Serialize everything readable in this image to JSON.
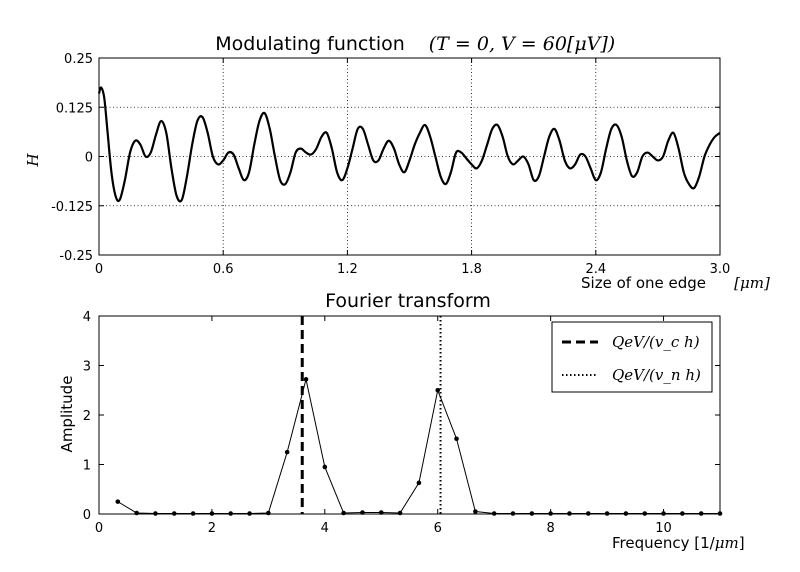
{
  "chart_data": [
    {
      "type": "line",
      "title": "Modulating function",
      "title_math": "(T = 0, V = 60[μV])",
      "xlabel": "Size of one edge",
      "xlabel_unit": "[μm]",
      "ylabel": "H",
      "xlim": [
        0,
        3.0
      ],
      "ylim": [
        -0.25,
        0.25
      ],
      "x_ticks": [
        "0",
        "0.6",
        "1.2",
        "1.8",
        "2.4",
        "3.0"
      ],
      "y_ticks": [
        "0.25",
        "0.125",
        "0",
        "-0.125",
        "-0.25"
      ],
      "grid": true,
      "series": [
        {
          "x": [
            0,
            0.01,
            0.025,
            0.04,
            0.06,
            0.08,
            0.1,
            0.125,
            0.15,
            0.175,
            0.2,
            0.225,
            0.25,
            0.275,
            0.3,
            0.325,
            0.35,
            0.375,
            0.4,
            0.425,
            0.45,
            0.475,
            0.5,
            0.525,
            0.55,
            0.575,
            0.6,
            0.625,
            0.65,
            0.675,
            0.7,
            0.725,
            0.75,
            0.775,
            0.8,
            0.825,
            0.85,
            0.875,
            0.9,
            0.925,
            0.95,
            0.975,
            1.0,
            1.025,
            1.05,
            1.075,
            1.1,
            1.125,
            1.15,
            1.175,
            1.2,
            1.225,
            1.25,
            1.275,
            1.3,
            1.325,
            1.35,
            1.375,
            1.4,
            1.425,
            1.45,
            1.475,
            1.5,
            1.525,
            1.55,
            1.575,
            1.6,
            1.625,
            1.65,
            1.675,
            1.7,
            1.725,
            1.75,
            1.775,
            1.8,
            1.825,
            1.85,
            1.875,
            1.9,
            1.925,
            1.95,
            1.975,
            2.0,
            2.025,
            2.05,
            2.075,
            2.1,
            2.125,
            2.15,
            2.175,
            2.2,
            2.225,
            2.25,
            2.275,
            2.3,
            2.325,
            2.35,
            2.375,
            2.4,
            2.425,
            2.45,
            2.475,
            2.5,
            2.525,
            2.55,
            2.575,
            2.6,
            2.625,
            2.65,
            2.675,
            2.7,
            2.725,
            2.75,
            2.775,
            2.8,
            2.825,
            2.85,
            2.875,
            2.9,
            2.925,
            2.95,
            2.975,
            3.0
          ],
          "y": [
            0.16,
            0.175,
            0.15,
            0.07,
            -0.04,
            -0.1,
            -0.11,
            -0.06,
            0.01,
            0.04,
            0.03,
            0.0,
            0.01,
            0.055,
            0.09,
            0.06,
            -0.03,
            -0.1,
            -0.11,
            -0.05,
            0.03,
            0.09,
            0.1,
            0.06,
            0.0,
            -0.02,
            -0.01,
            0.01,
            0.005,
            -0.03,
            -0.06,
            -0.04,
            0.03,
            0.09,
            0.11,
            0.07,
            0.0,
            -0.06,
            -0.07,
            -0.04,
            0.01,
            0.02,
            0.01,
            0.005,
            0.02,
            0.05,
            0.06,
            0.02,
            -0.04,
            -0.06,
            -0.03,
            0.02,
            0.07,
            0.07,
            0.03,
            -0.01,
            -0.01,
            0.02,
            0.04,
            0.02,
            -0.02,
            -0.04,
            -0.01,
            0.03,
            0.06,
            0.08,
            0.05,
            0.0,
            -0.05,
            -0.07,
            -0.04,
            0.01,
            0.01,
            -0.005,
            -0.02,
            -0.03,
            -0.01,
            0.03,
            0.07,
            0.08,
            0.05,
            0.0,
            -0.02,
            -0.01,
            0.0,
            -0.02,
            -0.06,
            -0.05,
            0.0,
            0.05,
            0.07,
            0.04,
            -0.01,
            -0.03,
            -0.02,
            0.005,
            0.0,
            -0.03,
            -0.06,
            -0.04,
            0.02,
            0.07,
            0.08,
            0.05,
            -0.01,
            -0.05,
            -0.04,
            0.0,
            0.01,
            0.0,
            -0.01,
            0.0,
            0.04,
            0.06,
            0.02,
            -0.04,
            -0.07,
            -0.08,
            -0.05,
            0.0,
            0.03,
            0.05,
            0.06
          ]
        }
      ]
    },
    {
      "type": "line",
      "title": "Fourier transform",
      "xlabel": "Frequency [1/",
      "xlabel_unit": "μm",
      "xlabel_end": "]",
      "ylabel": "Amplitude",
      "xlim": [
        0,
        11
      ],
      "ylim": [
        0,
        4
      ],
      "x_ticks": [
        "0",
        "2",
        "4",
        "6",
        "8",
        "10"
      ],
      "y_ticks": [
        "0",
        "1",
        "2",
        "3",
        "4"
      ],
      "grid": false,
      "legend_position": "top-right",
      "series": [
        {
          "x": [
            0.333,
            0.667,
            1.0,
            1.333,
            1.667,
            2.0,
            2.333,
            2.667,
            3.0,
            3.333,
            3.667,
            4.0,
            4.333,
            4.667,
            5.0,
            5.333,
            5.667,
            6.0,
            6.333,
            6.667,
            7.0,
            7.333,
            7.667,
            8.0,
            8.333,
            8.667,
            9.0,
            9.333,
            9.667,
            10.0,
            10.333,
            10.667,
            11.0
          ],
          "y": [
            0.25,
            0.02,
            0.01,
            0.01,
            0.01,
            0.01,
            0.01,
            0.01,
            0.02,
            1.25,
            2.72,
            0.95,
            0.02,
            0.03,
            0.03,
            0.02,
            0.63,
            2.5,
            1.52,
            0.05,
            0.01,
            0.01,
            0.01,
            0.01,
            0.01,
            0.01,
            0.01,
            0.01,
            0.01,
            0.01,
            0.01,
            0.01,
            0.01
          ]
        }
      ],
      "vlines": [
        {
          "x": 3.6,
          "style": "dashed",
          "legend": "QeV/(v_c h)"
        },
        {
          "x": 6.05,
          "style": "dotted",
          "legend": "QeV/(v_n h)"
        }
      ]
    }
  ]
}
